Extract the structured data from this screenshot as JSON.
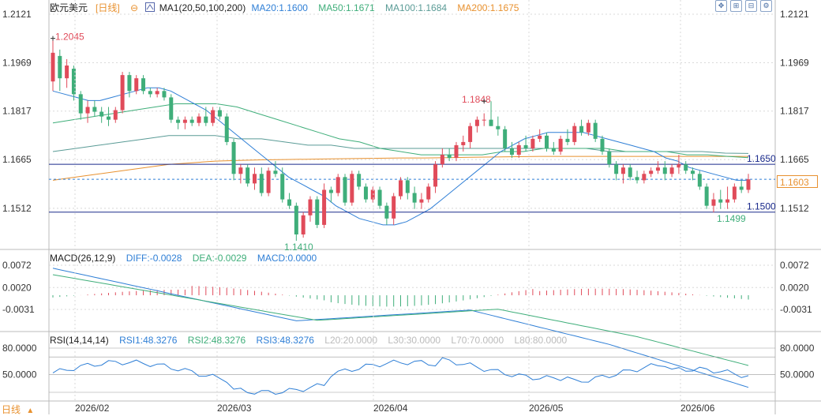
{
  "header": {
    "symbol": "欧元美元",
    "period": "[日线]",
    "period_icon": "circle-minus-icon",
    "ma_label": "MA1(20,50,100,200)",
    "ma20": "MA20:1.1600",
    "ma50": "MA50:1.1671",
    "ma100": "MA100:1.1684",
    "ma200": "MA200:1.1675"
  },
  "toolbar": {
    "icons": [
      "move-icon",
      "zoom-in-icon",
      "zoom-out-icon",
      "settings-icon"
    ]
  },
  "colors": {
    "up": "#e04b5a",
    "down": "#3fae7a",
    "ma20": "#2f7fd6",
    "ma50": "#3fae7a",
    "ma100": "#5a9b96",
    "ma200": "#e8912f",
    "hline": "#1a2a8c",
    "grid": "#d8d8d8",
    "macd_diff": "#2f7fd6",
    "macd_dea": "#3fae7a",
    "rsi": "#2f7fd6"
  },
  "main_axis": {
    "ticks": [
      "1.2121",
      "1.1969",
      "1.1817",
      "1.1665",
      "1.1512"
    ],
    "current_price": "1.1603",
    "hline_1650": "1.1650",
    "hline_1500": "1.1500"
  },
  "annotations": {
    "high": "1.2045",
    "peak_apr": "1.1848",
    "low": "1.1410",
    "low_jun": "1.1499"
  },
  "macd": {
    "label": "MACD(26,12,9)",
    "diff": "DIFF:-0.0028",
    "dea": "DEA:-0.0029",
    "macd": "MACD:0.0000",
    "ticks": [
      "0.0072",
      "0.0020",
      "-0.0031"
    ]
  },
  "rsi": {
    "label": "RSI(14,14,14)",
    "rsi1": "RSI1:48.3276",
    "rsi2": "RSI2:48.3276",
    "rsi3": "RSI3:48.3276",
    "l20": "L20:20.0000",
    "l30": "L30:30.0000",
    "l70": "L70:70.0000",
    "l80": "L80:80.0000",
    "ticks": [
      "80.0000",
      "50.0000"
    ]
  },
  "x_axis": {
    "labels": [
      "2026/02",
      "2026/03",
      "2026/04",
      "2026/05",
      "2026/06"
    ]
  },
  "footer": {
    "period_label": "日线",
    "arrow": "▲"
  },
  "chart_data": {
    "type": "candlestick",
    "ylim": [
      1.14,
      1.2121
    ],
    "candles": [
      [
        1.191,
        1.2045,
        1.188,
        1.2
      ],
      [
        1.199,
        1.201,
        1.188,
        1.192
      ],
      [
        1.192,
        1.198,
        1.189,
        1.196
      ],
      [
        1.195,
        1.196,
        1.185,
        1.187
      ],
      [
        1.187,
        1.188,
        1.179,
        1.181
      ],
      [
        1.181,
        1.185,
        1.178,
        1.183
      ],
      [
        1.183,
        1.185,
        1.18,
        1.1815
      ],
      [
        1.1815,
        1.183,
        1.178,
        1.18
      ],
      [
        1.18,
        1.183,
        1.177,
        1.179
      ],
      [
        1.179,
        1.183,
        1.178,
        1.182
      ],
      [
        1.182,
        1.194,
        1.181,
        1.193
      ],
      [
        1.193,
        1.194,
        1.186,
        1.188
      ],
      [
        1.188,
        1.193,
        1.187,
        1.192
      ],
      [
        1.192,
        1.193,
        1.187,
        1.188
      ],
      [
        1.188,
        1.189,
        1.186,
        1.187
      ],
      [
        1.187,
        1.189,
        1.186,
        1.188
      ],
      [
        1.188,
        1.189,
        1.185,
        1.186
      ],
      [
        1.186,
        1.187,
        1.178,
        1.179
      ],
      [
        1.179,
        1.18,
        1.176,
        1.178
      ],
      [
        1.178,
        1.18,
        1.176,
        1.179
      ],
      [
        1.179,
        1.18,
        1.177,
        1.178
      ],
      [
        1.178,
        1.181,
        1.177,
        1.18
      ],
      [
        1.18,
        1.183,
        1.177,
        1.178
      ],
      [
        1.178,
        1.183,
        1.177,
        1.182
      ],
      [
        1.182,
        1.183,
        1.179,
        1.18
      ],
      [
        1.18,
        1.181,
        1.171,
        1.172
      ],
      [
        1.172,
        1.173,
        1.16,
        1.162
      ],
      [
        1.162,
        1.165,
        1.159,
        1.164
      ],
      [
        1.164,
        1.165,
        1.158,
        1.159
      ],
      [
        1.159,
        1.164,
        1.157,
        1.162
      ],
      [
        1.162,
        1.164,
        1.155,
        1.156
      ],
      [
        1.156,
        1.164,
        1.155,
        1.163
      ],
      [
        1.163,
        1.166,
        1.161,
        1.162
      ],
      [
        1.162,
        1.164,
        1.153,
        1.154
      ],
      [
        1.154,
        1.156,
        1.151,
        1.152
      ],
      [
        1.152,
        1.153,
        1.141,
        1.143
      ],
      [
        1.143,
        1.15,
        1.142,
        1.149
      ],
      [
        1.149,
        1.155,
        1.147,
        1.154
      ],
      [
        1.154,
        1.155,
        1.145,
        1.146
      ],
      [
        1.146,
        1.159,
        1.145,
        1.157
      ],
      [
        1.157,
        1.158,
        1.153,
        1.156
      ],
      [
        1.156,
        1.162,
        1.155,
        1.161
      ],
      [
        1.161,
        1.162,
        1.152,
        1.153
      ],
      [
        1.153,
        1.163,
        1.152,
        1.162
      ],
      [
        1.162,
        1.163,
        1.157,
        1.158
      ],
      [
        1.158,
        1.159,
        1.153,
        1.154
      ],
      [
        1.154,
        1.158,
        1.153,
        1.157
      ],
      [
        1.157,
        1.158,
        1.151,
        1.152
      ],
      [
        1.152,
        1.153,
        1.146,
        1.148
      ],
      [
        1.148,
        1.156,
        1.146,
        1.155
      ],
      [
        1.155,
        1.161,
        1.154,
        1.16
      ],
      [
        1.16,
        1.161,
        1.154,
        1.156
      ],
      [
        1.156,
        1.158,
        1.151,
        1.153
      ],
      [
        1.153,
        1.156,
        1.151,
        1.154
      ],
      [
        1.154,
        1.159,
        1.153,
        1.158
      ],
      [
        1.158,
        1.166,
        1.156,
        1.165
      ],
      [
        1.165,
        1.17,
        1.164,
        1.168
      ],
      [
        1.168,
        1.17,
        1.166,
        1.167
      ],
      [
        1.167,
        1.172,
        1.166,
        1.171
      ],
      [
        1.171,
        1.174,
        1.169,
        1.172
      ],
      [
        1.172,
        1.178,
        1.17,
        1.177
      ],
      [
        1.177,
        1.18,
        1.175,
        1.179
      ],
      [
        1.179,
        1.181,
        1.177,
        1.179
      ],
      [
        1.179,
        1.1848,
        1.177,
        1.177
      ],
      [
        1.177,
        1.18,
        1.174,
        1.176
      ],
      [
        1.176,
        1.177,
        1.169,
        1.17
      ],
      [
        1.17,
        1.172,
        1.167,
        1.168
      ],
      [
        1.168,
        1.172,
        1.167,
        1.171
      ],
      [
        1.171,
        1.174,
        1.169,
        1.17
      ],
      [
        1.17,
        1.174,
        1.169,
        1.173
      ],
      [
        1.173,
        1.176,
        1.172,
        1.174
      ],
      [
        1.174,
        1.175,
        1.169,
        1.17
      ],
      [
        1.17,
        1.172,
        1.168,
        1.169
      ],
      [
        1.169,
        1.174,
        1.168,
        1.173
      ],
      [
        1.173,
        1.176,
        1.171,
        1.172
      ],
      [
        1.172,
        1.178,
        1.171,
        1.177
      ],
      [
        1.177,
        1.179,
        1.174,
        1.175
      ],
      [
        1.175,
        1.179,
        1.174,
        1.178
      ],
      [
        1.178,
        1.179,
        1.172,
        1.173
      ],
      [
        1.173,
        1.174,
        1.168,
        1.169
      ],
      [
        1.169,
        1.17,
        1.164,
        1.165
      ],
      [
        1.165,
        1.166,
        1.16,
        1.162
      ],
      [
        1.162,
        1.165,
        1.159,
        1.164
      ],
      [
        1.164,
        1.165,
        1.16,
        1.161
      ],
      [
        1.161,
        1.163,
        1.159,
        1.16
      ],
      [
        1.16,
        1.163,
        1.159,
        1.162
      ],
      [
        1.162,
        1.164,
        1.161,
        1.163
      ],
      [
        1.163,
        1.166,
        1.162,
        1.164
      ],
      [
        1.164,
        1.166,
        1.16,
        1.162
      ],
      [
        1.162,
        1.165,
        1.161,
        1.164
      ],
      [
        1.164,
        1.168,
        1.162,
        1.165
      ],
      [
        1.165,
        1.166,
        1.162,
        1.163
      ],
      [
        1.163,
        1.164,
        1.16,
        1.162
      ],
      [
        1.162,
        1.163,
        1.157,
        1.158
      ],
      [
        1.158,
        1.159,
        1.151,
        1.152
      ],
      [
        1.152,
        1.156,
        1.1499,
        1.154
      ],
      [
        1.154,
        1.157,
        1.151,
        1.153
      ],
      [
        1.153,
        1.158,
        1.151,
        1.154
      ],
      [
        1.154,
        1.159,
        1.153,
        1.158
      ],
      [
        1.158,
        1.16,
        1.156,
        1.157
      ],
      [
        1.157,
        1.162,
        1.156,
        1.1603
      ]
    ],
    "ma20": [
      1.188,
      1.187,
      1.186,
      1.185,
      1.185,
      1.186,
      1.187,
      1.188,
      1.189,
      1.189,
      1.188,
      1.186,
      1.184,
      1.182,
      1.179,
      1.176,
      1.173,
      1.17,
      1.167,
      1.164,
      1.161,
      1.159,
      1.157,
      1.155,
      1.152,
      1.15,
      1.148,
      1.147,
      1.146,
      1.146,
      1.147,
      1.149,
      1.151,
      1.154,
      1.157,
      1.16,
      1.163,
      1.166,
      1.169,
      1.171,
      1.173,
      1.174,
      1.175,
      1.175,
      1.175,
      1.175,
      1.174,
      1.173,
      1.172,
      1.171,
      1.17,
      1.169,
      1.167,
      1.166,
      1.164,
      1.163,
      1.162,
      1.161,
      1.16,
      1.16
    ],
    "ma50": [
      1.178,
      1.179,
      1.18,
      1.181,
      1.182,
      1.183,
      1.184,
      1.184,
      1.184,
      1.183,
      1.181,
      1.179,
      1.177,
      1.175,
      1.173,
      1.172,
      1.17,
      1.169,
      1.168,
      1.168,
      1.168,
      1.168,
      1.169,
      1.169,
      1.17,
      1.17,
      1.17,
      1.17,
      1.169,
      1.169,
      1.169,
      1.168,
      1.168,
      1.1675,
      1.1671
    ],
    "ma100": [
      1.169,
      1.17,
      1.171,
      1.172,
      1.173,
      1.174,
      1.174,
      1.174,
      1.173,
      1.173,
      1.172,
      1.171,
      1.171,
      1.17,
      1.17,
      1.17,
      1.17,
      1.17,
      1.17,
      1.17,
      1.17,
      1.17,
      1.17,
      1.17,
      1.169,
      1.169,
      1.169,
      1.169,
      1.169,
      1.1685,
      1.1684
    ],
    "ma200": [
      1.16,
      1.161,
      1.162,
      1.163,
      1.164,
      1.165,
      1.1655,
      1.166,
      1.1662,
      1.1664,
      1.1665,
      1.1666,
      1.1667,
      1.1668,
      1.1669,
      1.167,
      1.167,
      1.1671,
      1.1672,
      1.1673,
      1.1674,
      1.1675,
      1.1675,
      1.1675,
      1.1675,
      1.1675,
      1.1675,
      1.1675,
      1.1675,
      1.1675,
      1.1675
    ]
  }
}
